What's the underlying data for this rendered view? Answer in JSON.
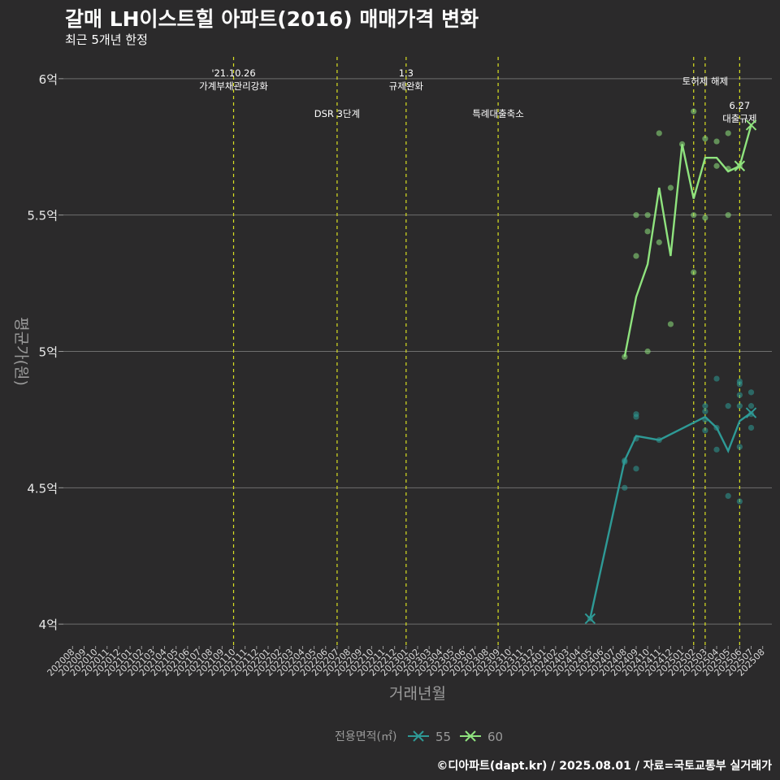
{
  "title": "갈매 LH이스트힐 아파트(2016) 매매가격 변화",
  "subtitle": "최근 5개년 한정",
  "caption": "©디아파트(dapt.kr) / 2025.08.01 / 자료=국토교통부 실거래가",
  "chart_data": {
    "type": "line",
    "xlabel": "거래년월",
    "ylabel": "평균가(원)",
    "ylim": [
      3.92,
      6.08
    ],
    "y_ticks": [
      {
        "value": 4.0,
        "label": "4억"
      },
      {
        "value": 4.5,
        "label": "4.5억"
      },
      {
        "value": 5.0,
        "label": "5억"
      },
      {
        "value": 5.5,
        "label": "5.5억"
      },
      {
        "value": 6.0,
        "label": "6억"
      }
    ],
    "categories": [
      "202008",
      "202009",
      "202010",
      "202011",
      "202012",
      "202101",
      "202102",
      "202103",
      "202104",
      "202105",
      "202106",
      "202107",
      "202108",
      "202109",
      "202110",
      "202111",
      "202112",
      "202201",
      "202202",
      "202203",
      "202204",
      "202205",
      "202206",
      "202207",
      "202208",
      "202209",
      "202210",
      "202211",
      "202212",
      "202301",
      "202302",
      "202303",
      "202304",
      "202305",
      "202306",
      "202307",
      "202308",
      "202309",
      "202310",
      "202311",
      "202312",
      "202401",
      "202402",
      "202403",
      "202404",
      "202405",
      "202406",
      "202407",
      "202408",
      "202409",
      "202410",
      "202411",
      "202412",
      "202501",
      "202502",
      "202503",
      "202504",
      "202505",
      "202506",
      "202507",
      "202508"
    ],
    "events": [
      {
        "month": "202110",
        "label_lines": [
          "'21.10.26",
          "가계부채관리강화"
        ],
        "row": "top"
      },
      {
        "month": "202207",
        "label_lines": [
          "DSR 3단계"
        ],
        "row": "bottom"
      },
      {
        "month": "202301",
        "label_lines": [
          "1.3",
          "규제완화"
        ],
        "row": "top"
      },
      {
        "month": "202309",
        "label_lines": [
          "특례대출축소"
        ],
        "row": "bottom"
      },
      {
        "month": "202502",
        "label_lines": [],
        "row": "none"
      },
      {
        "month": "202503",
        "label_lines": [
          "토허제 해제"
        ],
        "row": "top"
      },
      {
        "month": "202506",
        "label_lines": [
          "6.27",
          "대출규제"
        ],
        "row": "bottom"
      }
    ],
    "legend": {
      "title": "전용면적(㎡)",
      "position": "bottom"
    },
    "series": [
      {
        "name": "55",
        "color": "#2e9a96",
        "line": [
          [
            "202405",
            4.02
          ],
          [
            "202408",
            4.6
          ],
          [
            "202409",
            4.69
          ],
          [
            "202411",
            4.675
          ],
          [
            "202503",
            4.76
          ],
          [
            "202504",
            4.72
          ],
          [
            "202505",
            4.635
          ],
          [
            "202506",
            4.745
          ],
          [
            "202507",
            4.775
          ]
        ],
        "points": [
          [
            "202405",
            4.02
          ],
          [
            "202408",
            4.6
          ],
          [
            "202408",
            4.595
          ],
          [
            "202408",
            4.5
          ],
          [
            "202409",
            4.77
          ],
          [
            "202409",
            4.76
          ],
          [
            "202409",
            4.68
          ],
          [
            "202409",
            4.57
          ],
          [
            "202411",
            4.675
          ],
          [
            "202503",
            4.8
          ],
          [
            "202503",
            4.78
          ],
          [
            "202503",
            4.75
          ],
          [
            "202503",
            4.71
          ],
          [
            "202504",
            4.9
          ],
          [
            "202504",
            4.72
          ],
          [
            "202504",
            4.64
          ],
          [
            "202505",
            4.8
          ],
          [
            "202505",
            4.47
          ],
          [
            "202506",
            4.89
          ],
          [
            "202506",
            4.88
          ],
          [
            "202506",
            4.84
          ],
          [
            "202506",
            4.8
          ],
          [
            "202506",
            4.65
          ],
          [
            "202506",
            4.45
          ],
          [
            "202507",
            4.85
          ],
          [
            "202507",
            4.8
          ],
          [
            "202507",
            4.77
          ],
          [
            "202507",
            4.72
          ]
        ],
        "end_markers": [
          "202405",
          "202507"
        ]
      },
      {
        "name": "60",
        "color": "#8fe37e",
        "line": [
          [
            "202408",
            4.98
          ],
          [
            "202409",
            5.2
          ],
          [
            "202410",
            5.32
          ],
          [
            "202411",
            5.6
          ],
          [
            "202412",
            5.35
          ],
          [
            "202501",
            5.76
          ],
          [
            "202502",
            5.56
          ],
          [
            "202503",
            5.71
          ],
          [
            "202504",
            5.71
          ],
          [
            "202505",
            5.66
          ],
          [
            "202506",
            5.68
          ],
          [
            "202507",
            5.83
          ]
        ],
        "points": [
          [
            "202408",
            4.98
          ],
          [
            "202409",
            5.5
          ],
          [
            "202409",
            5.35
          ],
          [
            "202410",
            5.5
          ],
          [
            "202410",
            5.44
          ],
          [
            "202410",
            5.0
          ],
          [
            "202411",
            5.8
          ],
          [
            "202411",
            5.4
          ],
          [
            "202412",
            5.6
          ],
          [
            "202412",
            5.1
          ],
          [
            "202501",
            5.76
          ],
          [
            "202502",
            5.88
          ],
          [
            "202502",
            5.5
          ],
          [
            "202502",
            5.29
          ],
          [
            "202503",
            5.78
          ],
          [
            "202503",
            5.49
          ],
          [
            "202504",
            5.77
          ],
          [
            "202504",
            5.68
          ],
          [
            "202505",
            5.8
          ],
          [
            "202505",
            5.67
          ],
          [
            "202505",
            5.5
          ],
          [
            "202506",
            5.68
          ]
        ],
        "end_markers": [
          "202506",
          "202507"
        ]
      }
    ]
  }
}
